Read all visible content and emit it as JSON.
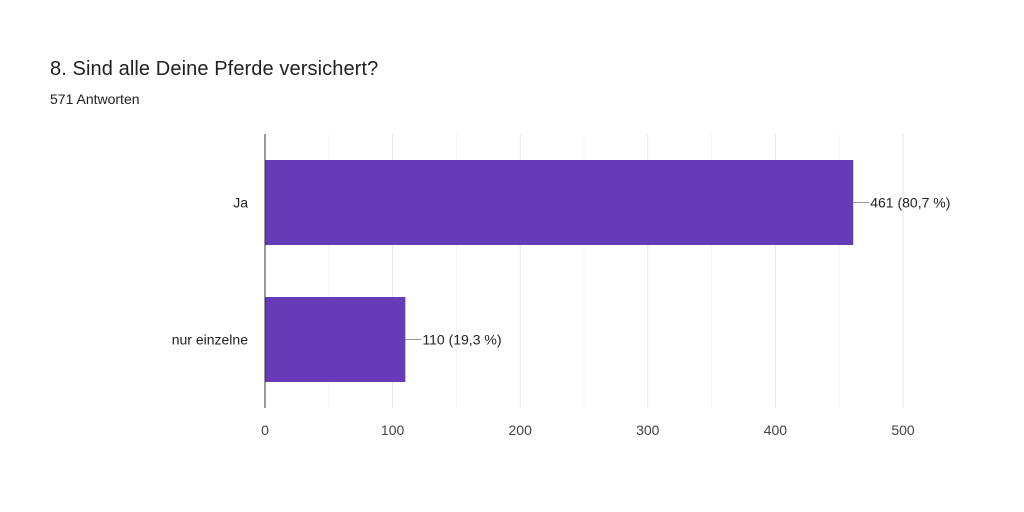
{
  "question": {
    "title": "8. Sind alle Deine Pferde versichert?",
    "responses": "571 Antworten"
  },
  "colors": {
    "bar": "#673ab7",
    "grid": "#e6e6e6",
    "axis": "#333333",
    "leader": "#999999"
  },
  "chart_data": {
    "type": "bar",
    "orientation": "horizontal",
    "categories": [
      "Ja",
      "nur einzelne"
    ],
    "values": [
      461,
      110
    ],
    "data_labels": [
      "461 (80,7 %)",
      "110 (19,3 %)"
    ],
    "xlim": [
      0,
      500
    ],
    "xticks": [
      0,
      100,
      200,
      300,
      400,
      500
    ],
    "title": "8. Sind alle Deine Pferde versichert?",
    "subtitle": "571 Antworten",
    "xlabel": "",
    "ylabel": "",
    "grid": true,
    "legend": "none"
  }
}
